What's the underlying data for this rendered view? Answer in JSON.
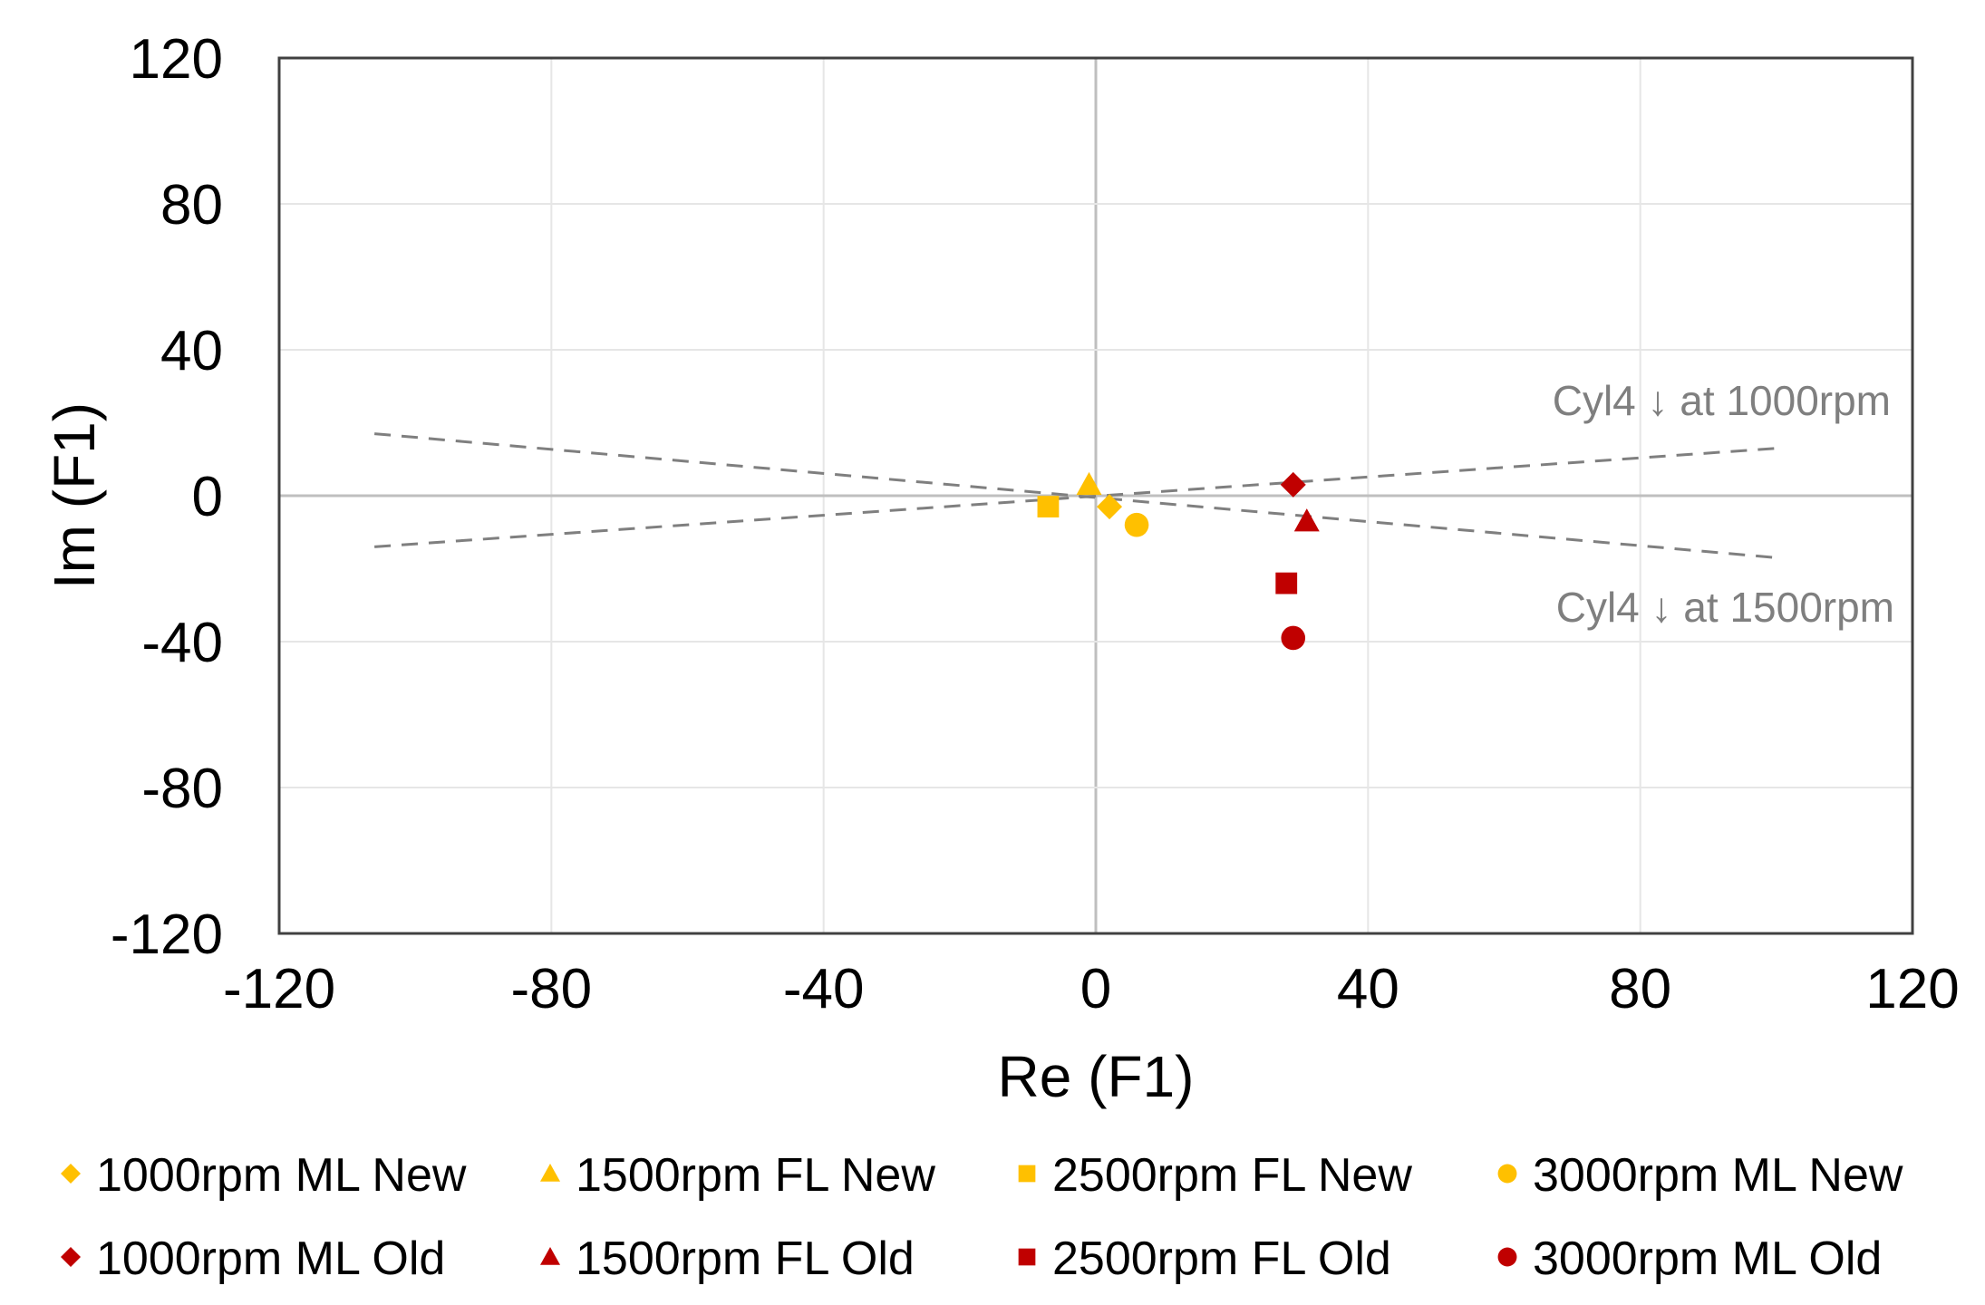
{
  "chart_data": {
    "type": "scatter",
    "title": "",
    "xlabel": "Re (F1)",
    "ylabel": "Im (F1)",
    "xlim": [
      -120,
      120
    ],
    "ylim": [
      -120,
      120
    ],
    "xticks": [
      -120,
      -80,
      -40,
      0,
      40,
      80,
      120
    ],
    "yticks": [
      -120,
      -80,
      -40,
      0,
      40,
      80,
      120
    ],
    "grid": true,
    "series": [
      {
        "name": "1000rpm ML New",
        "marker": "diamond",
        "color": "#FFC000",
        "points": [
          [
            2,
            -3
          ]
        ]
      },
      {
        "name": "1500rpm FL New",
        "marker": "triangle",
        "color": "#FFC000",
        "points": [
          [
            -1,
            3
          ]
        ]
      },
      {
        "name": "2500rpm FL New",
        "marker": "square",
        "color": "#FFC000",
        "points": [
          [
            -7,
            -3
          ]
        ]
      },
      {
        "name": "3000rpm ML New",
        "marker": "circle",
        "color": "#FFC000",
        "points": [
          [
            6,
            -8
          ]
        ]
      },
      {
        "name": "1000rpm ML Old",
        "marker": "diamond",
        "color": "#C00000",
        "points": [
          [
            29,
            3
          ]
        ]
      },
      {
        "name": "1500rpm FL Old",
        "marker": "triangle",
        "color": "#C00000",
        "points": [
          [
            31,
            -7
          ]
        ]
      },
      {
        "name": "2500rpm FL Old",
        "marker": "square",
        "color": "#C00000",
        "points": [
          [
            28,
            -24
          ]
        ]
      },
      {
        "name": "3000rpm ML Old",
        "marker": "circle",
        "color": "#C00000",
        "points": [
          [
            29,
            -39
          ]
        ]
      }
    ],
    "reference_lines": [
      {
        "name": "Cyl4 ↓ at 1000rpm",
        "from": [
          -106,
          -14
        ],
        "to": [
          100,
          13
        ]
      },
      {
        "name": "Cyl4 ↓ at 1500rpm",
        "from": [
          -106,
          17
        ],
        "to": [
          100,
          -17
        ]
      }
    ],
    "annotations": [
      "Cyl4 ↓ at 1000rpm",
      "Cyl4 ↓ at 1500rpm"
    ],
    "legend_position": "bottom"
  }
}
